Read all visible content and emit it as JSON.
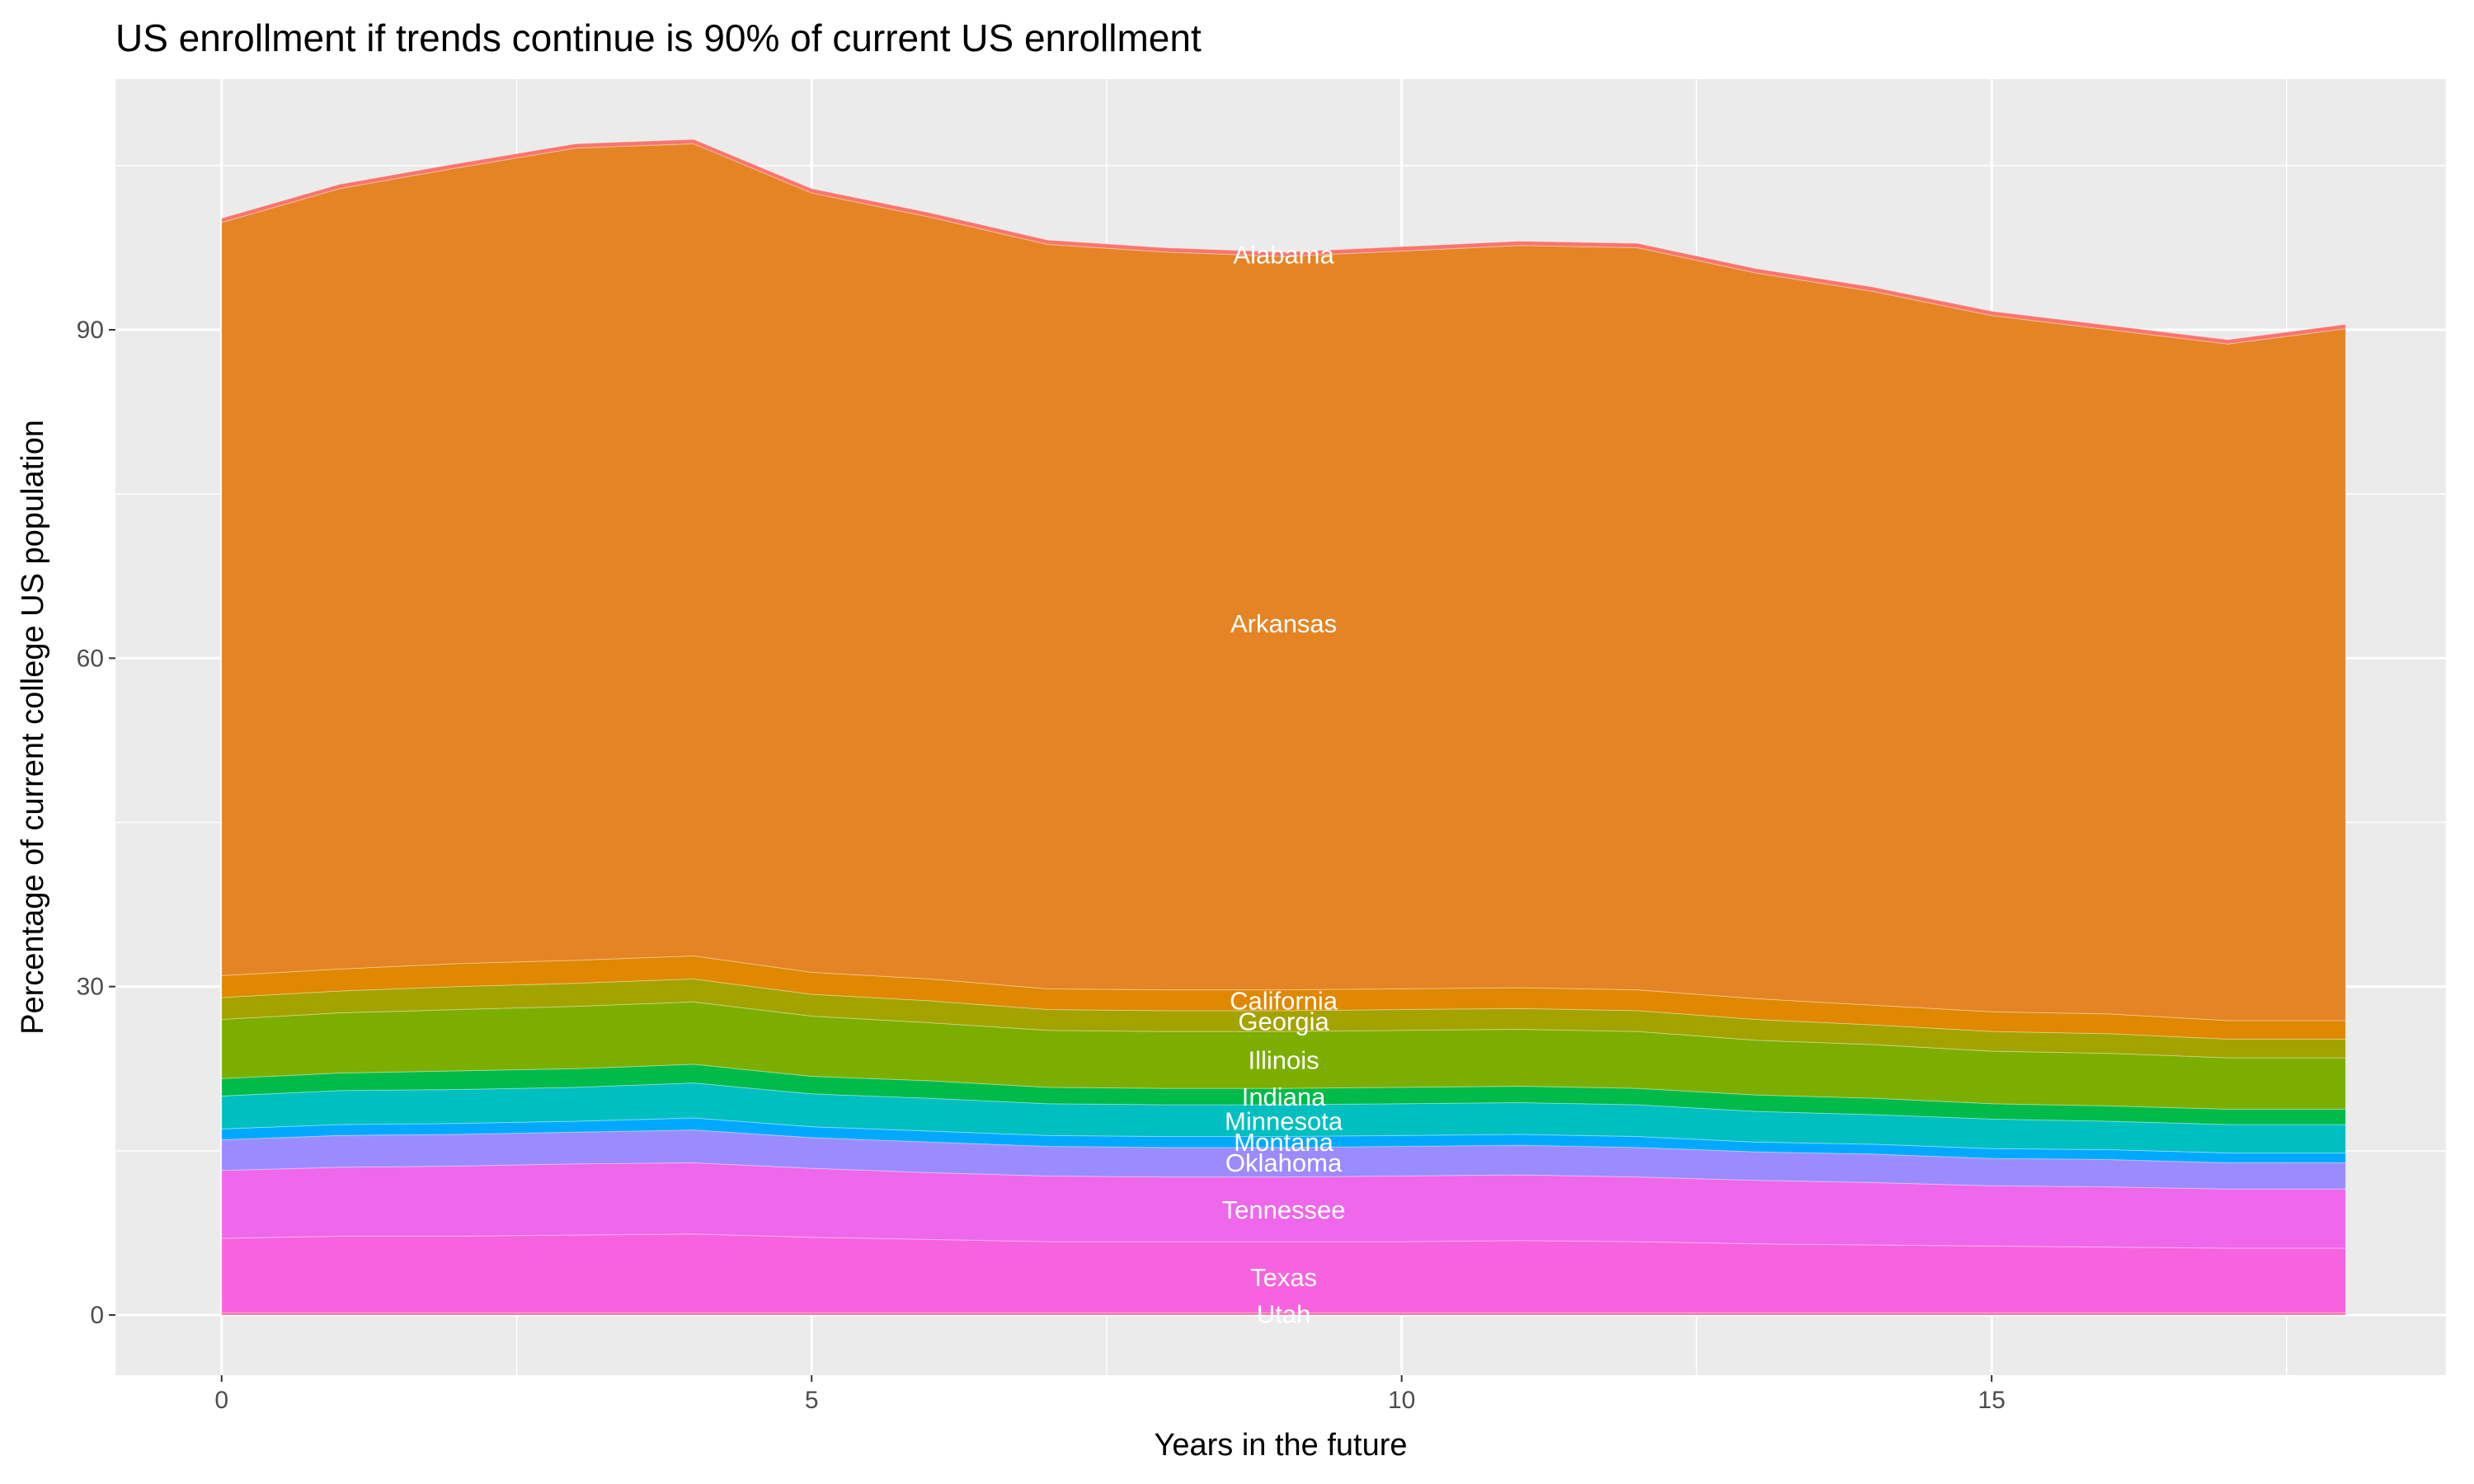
{
  "chart_data": {
    "type": "area",
    "stacked": true,
    "title": "US enrollment if trends continue is 90% of current US enrollment",
    "xlabel": "Years in the future",
    "ylabel": "Percentage of current college US population",
    "x": [
      0,
      1,
      2,
      3,
      4,
      5,
      6,
      7,
      8,
      9,
      10,
      11,
      12,
      13,
      14,
      15,
      16,
      17,
      18
    ],
    "xlim": [
      -0.9,
      18.85
    ],
    "ylim": [
      -5.5,
      112.9
    ],
    "xticks": [
      0,
      5,
      10,
      15
    ],
    "yticks": [
      0,
      30,
      60,
      90
    ],
    "grid": true,
    "legend": "none",
    "label_position_x": 9,
    "series": [
      {
        "name": "Utah",
        "color": "#FF6C91",
        "values": [
          0.2,
          0.2,
          0.2,
          0.2,
          0.2,
          0.2,
          0.2,
          0.2,
          0.2,
          0.2,
          0.2,
          0.2,
          0.2,
          0.2,
          0.2,
          0.2,
          0.2,
          0.2,
          0.2
        ]
      },
      {
        "name": "Texas",
        "color": "#F763DE",
        "values": [
          6.8,
          7.0,
          7.0,
          7.1,
          7.2,
          6.9,
          6.7,
          6.5,
          6.5,
          6.5,
          6.5,
          6.6,
          6.5,
          6.3,
          6.2,
          6.1,
          6.0,
          5.9,
          5.9
        ]
      },
      {
        "name": "Tennessee",
        "color": "#EF67EB",
        "values": [
          6.2,
          6.3,
          6.4,
          6.5,
          6.5,
          6.3,
          6.1,
          6.0,
          5.9,
          5.9,
          6.0,
          6.0,
          5.9,
          5.8,
          5.7,
          5.5,
          5.5,
          5.4,
          5.4
        ]
      },
      {
        "name": "Oklahoma",
        "color": "#9A8CFF",
        "values": [
          2.8,
          2.9,
          2.9,
          2.9,
          3.0,
          2.8,
          2.8,
          2.7,
          2.7,
          2.7,
          2.7,
          2.7,
          2.7,
          2.6,
          2.6,
          2.5,
          2.5,
          2.4,
          2.4
        ]
      },
      {
        "name": "Montana",
        "color": "#00A9FF",
        "values": [
          1.0,
          1.0,
          1.0,
          1.0,
          1.1,
          1.0,
          1.0,
          1.0,
          1.0,
          1.0,
          1.0,
          1.0,
          1.0,
          0.9,
          0.9,
          0.9,
          0.9,
          0.9,
          0.9
        ]
      },
      {
        "name": "Minnesota",
        "color": "#00BFC0",
        "values": [
          3.0,
          3.1,
          3.1,
          3.1,
          3.2,
          3.0,
          3.0,
          2.9,
          2.9,
          2.9,
          2.9,
          2.9,
          2.9,
          2.8,
          2.7,
          2.7,
          2.6,
          2.6,
          2.6
        ]
      },
      {
        "name": "Indiana",
        "color": "#00BA4A",
        "values": [
          1.6,
          1.6,
          1.7,
          1.7,
          1.7,
          1.6,
          1.6,
          1.5,
          1.5,
          1.5,
          1.5,
          1.5,
          1.5,
          1.5,
          1.5,
          1.4,
          1.4,
          1.4,
          1.4
        ]
      },
      {
        "name": "Illinois",
        "color": "#7CAE00",
        "values": [
          5.4,
          5.5,
          5.6,
          5.7,
          5.7,
          5.5,
          5.3,
          5.2,
          5.2,
          5.2,
          5.2,
          5.2,
          5.2,
          5.0,
          4.9,
          4.8,
          4.8,
          4.7,
          4.7
        ]
      },
      {
        "name": "Georgia",
        "color": "#A3A300",
        "values": [
          2.0,
          2.0,
          2.1,
          2.1,
          2.1,
          2.0,
          2.0,
          1.9,
          1.9,
          1.9,
          1.9,
          1.9,
          1.9,
          1.9,
          1.8,
          1.8,
          1.8,
          1.7,
          1.7
        ]
      },
      {
        "name": "California",
        "color": "#DF8800",
        "values": [
          2.0,
          2.0,
          2.1,
          2.1,
          2.1,
          2.0,
          2.0,
          1.9,
          1.9,
          1.9,
          1.9,
          1.9,
          1.9,
          1.9,
          1.8,
          1.8,
          1.8,
          1.7,
          1.7
        ]
      },
      {
        "name": "Arkansas",
        "color": "#E58424",
        "values": [
          68.8,
          71.3,
          72.7,
          74.2,
          74.2,
          71.2,
          69.6,
          68.0,
          67.4,
          67.0,
          67.4,
          67.8,
          67.8,
          66.3,
          65.2,
          63.6,
          62.5,
          61.8,
          63.2
        ]
      },
      {
        "name": "Alabama",
        "color": "#F8766D",
        "values": [
          0.4,
          0.4,
          0.4,
          0.4,
          0.4,
          0.4,
          0.4,
          0.4,
          0.4,
          0.4,
          0.4,
          0.4,
          0.4,
          0.4,
          0.4,
          0.4,
          0.4,
          0.4,
          0.4
        ]
      }
    ]
  }
}
